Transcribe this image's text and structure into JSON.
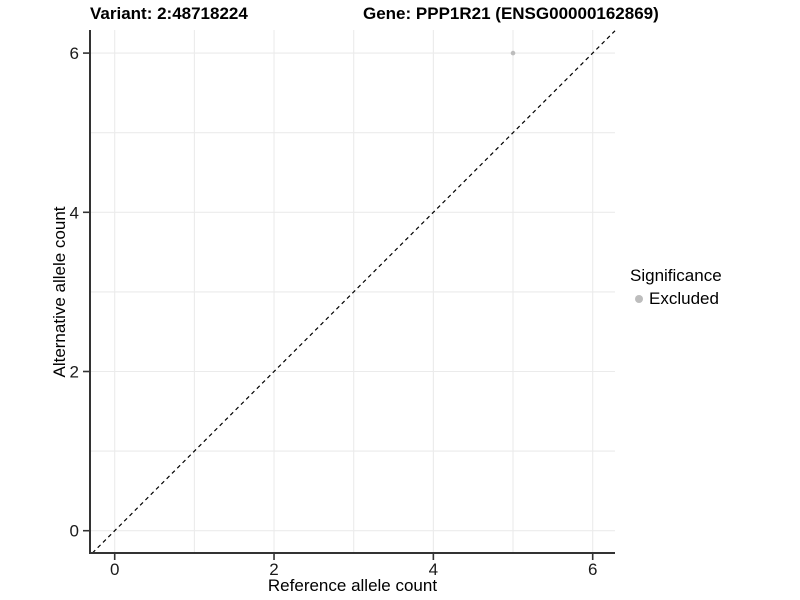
{
  "chart_data": {
    "type": "scatter",
    "titles": {
      "variant": "Variant: 2:48718224",
      "gene": "Gene: PPP1R21 (ENSG00000162869)"
    },
    "xlabel": "Reference allele count",
    "ylabel": "Alternative allele count",
    "xlim": [
      -0.31,
      6.28
    ],
    "ylim": [
      -0.28,
      6.29
    ],
    "x_ticks": [
      0,
      2,
      4,
      6
    ],
    "y_ticks": [
      0,
      2,
      4,
      6
    ],
    "grid_positions": [
      0,
      1,
      2,
      3,
      4,
      5,
      6
    ],
    "grid_on": true,
    "points": [
      {
        "x": 5,
        "y": 6,
        "series": "Excluded"
      }
    ],
    "identity_line": {
      "slope": 1,
      "intercept": 0,
      "style": "dashed"
    },
    "legend": {
      "position": "right",
      "title": "Significance",
      "entries": [
        {
          "label": "Excluded",
          "color": "#bdbdbd"
        }
      ]
    },
    "colors": {
      "point": "#bdbdbd",
      "grid": "#ebebeb",
      "axis_line": "#333333",
      "tick_text": "#1a1a1a",
      "dashed_line": "#000000",
      "background": "#ffffff"
    }
  }
}
